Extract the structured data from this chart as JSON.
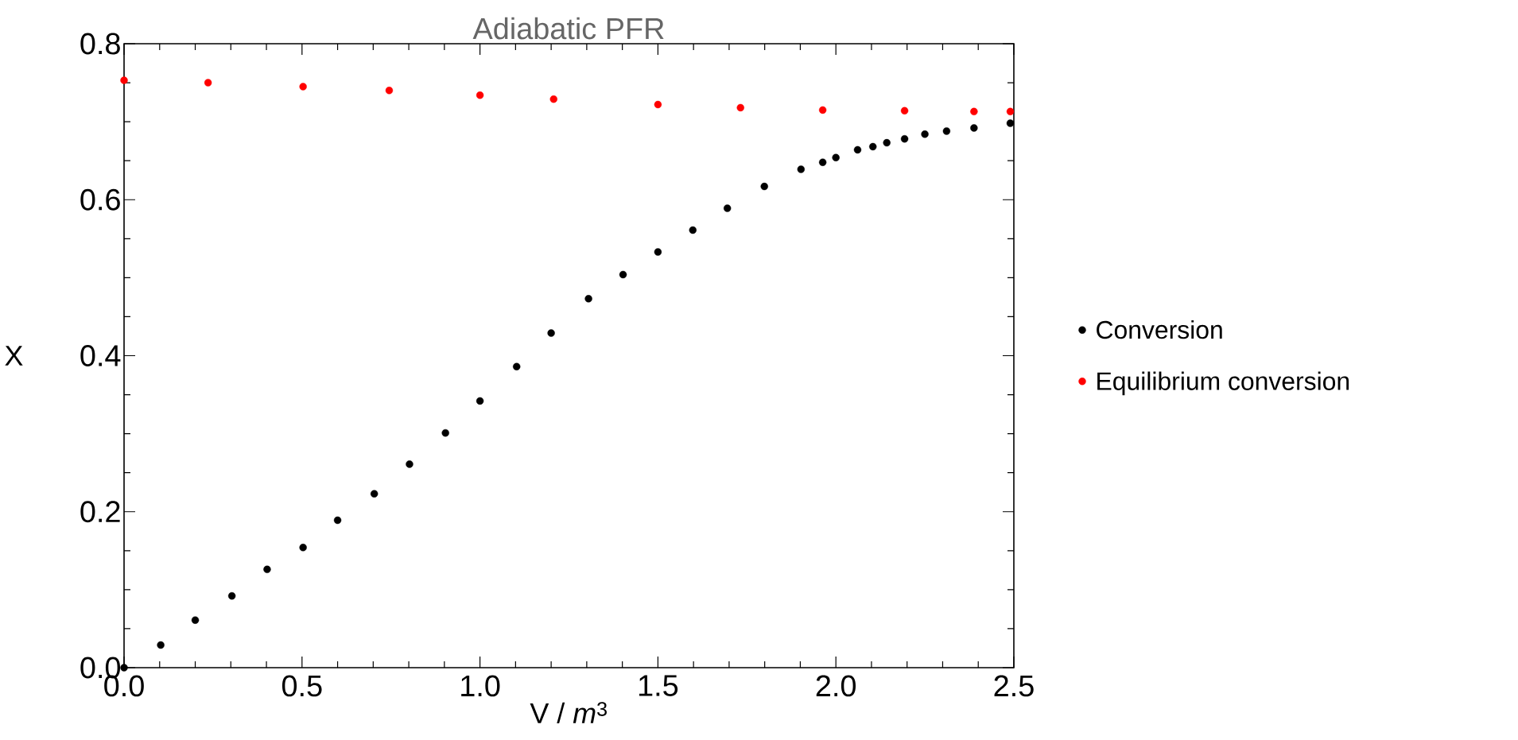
{
  "chart_data": {
    "type": "scatter",
    "title": "Adiabatic PFR",
    "xlabel": "V / *m*$^{3}$",
    "ylabel": "X",
    "xlim": [
      0,
      2.5
    ],
    "ylim": [
      0,
      0.8
    ],
    "xticks": [
      {
        "value": 0,
        "label": "0.0"
      },
      0.5,
      {
        "value": 1,
        "label": "1.0"
      },
      1.5,
      {
        "value": 2,
        "label": "2.0"
      },
      2.5
    ],
    "yticks": [
      {
        "value": 0,
        "label": "0.0"
      },
      0.2,
      0.4,
      0.6,
      0.8
    ],
    "legend": "right",
    "series": [
      {
        "name": "Conversion",
        "color": "#000000",
        "x": [
          0,
          0.103,
          0.2,
          0.303,
          0.402,
          0.503,
          0.6,
          0.703,
          0.802,
          0.903,
          1.0,
          1.103,
          1.2,
          1.305,
          1.402,
          1.5,
          1.598,
          1.695,
          1.799,
          1.902,
          1.963,
          2.0,
          2.061,
          2.104,
          2.143,
          2.193,
          2.25,
          2.311,
          2.388,
          2.49
        ],
        "values": [
          0,
          0.029,
          0.061,
          0.092,
          0.126,
          0.154,
          0.189,
          0.223,
          0.261,
          0.301,
          0.342,
          0.386,
          0.429,
          0.473,
          0.504,
          0.533,
          0.561,
          0.589,
          0.617,
          0.639,
          0.648,
          0.654,
          0.664,
          0.668,
          0.673,
          0.678,
          0.684,
          0.688,
          0.692,
          0.698
        ]
      },
      {
        "name": "Equilibrium conversion",
        "color": "#ff0000",
        "x": [
          0,
          0.236,
          0.503,
          0.745,
          1.0,
          1.207,
          1.5,
          1.732,
          1.963,
          2.193,
          2.388,
          2.49
        ],
        "values": [
          0.753,
          0.75,
          0.745,
          0.74,
          0.734,
          0.729,
          0.722,
          0.718,
          0.715,
          0.714,
          0.713,
          0.713
        ]
      }
    ]
  }
}
